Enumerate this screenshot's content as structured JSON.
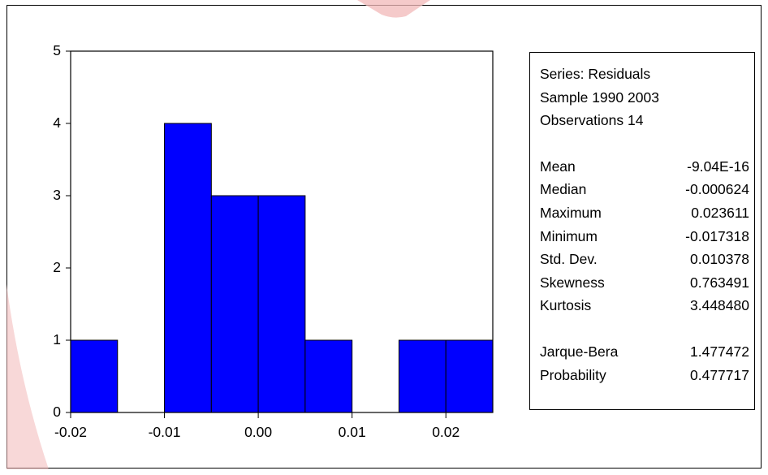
{
  "chart_data": {
    "type": "bar",
    "title": "",
    "xlabel": "",
    "ylabel": "",
    "bins": [
      {
        "from": -0.02,
        "to": -0.015,
        "count": 1
      },
      {
        "from": -0.015,
        "to": -0.01,
        "count": 0
      },
      {
        "from": -0.01,
        "to": -0.005,
        "count": 4
      },
      {
        "from": -0.005,
        "to": 0.0,
        "count": 3
      },
      {
        "from": 0.0,
        "to": 0.005,
        "count": 3
      },
      {
        "from": 0.005,
        "to": 0.01,
        "count": 1
      },
      {
        "from": 0.01,
        "to": 0.015,
        "count": 0
      },
      {
        "from": 0.015,
        "to": 0.02,
        "count": 1
      },
      {
        "from": 0.02,
        "to": 0.025,
        "count": 1
      }
    ],
    "xlim": [
      -0.02,
      0.025
    ],
    "ylim": [
      0,
      5
    ],
    "xticks": [
      {
        "value": -0.02,
        "label": "-0.02"
      },
      {
        "value": -0.01,
        "label": "-0.01"
      },
      {
        "value": 0.0,
        "label": "0.00"
      },
      {
        "value": 0.01,
        "label": "0.01"
      },
      {
        "value": 0.02,
        "label": "0.02"
      }
    ],
    "yticks": [
      {
        "value": 0,
        "label": "0"
      },
      {
        "value": 1,
        "label": "1"
      },
      {
        "value": 2,
        "label": "2"
      },
      {
        "value": 3,
        "label": "3"
      },
      {
        "value": 4,
        "label": "4"
      },
      {
        "value": 5,
        "label": "5"
      }
    ],
    "bar_color": "#0000FF",
    "bar_edge_color": "#000000",
    "grid": false,
    "legend": "none"
  },
  "stats": {
    "series_line": "Series: Residuals",
    "sample_line": "Sample 1990 2003",
    "observations_line": "Observations 14",
    "rows": [
      {
        "label": "Mean",
        "value": "-9.04E-16"
      },
      {
        "label": "Median",
        "value": "-0.000624"
      },
      {
        "label": "Maximum",
        "value": "0.023611"
      },
      {
        "label": "Minimum",
        "value": "-0.017318"
      },
      {
        "label": "Std. Dev.",
        "value": "0.010378"
      },
      {
        "label": "Skewness",
        "value": "0.763491"
      },
      {
        "label": "Kurtosis",
        "value": "3.448480"
      }
    ],
    "test_rows": [
      {
        "label": "Jarque-Bera",
        "value": "1.477472"
      },
      {
        "label": "Probability",
        "value": "0.477717"
      }
    ]
  },
  "watermark_color": "#F2B8B8"
}
